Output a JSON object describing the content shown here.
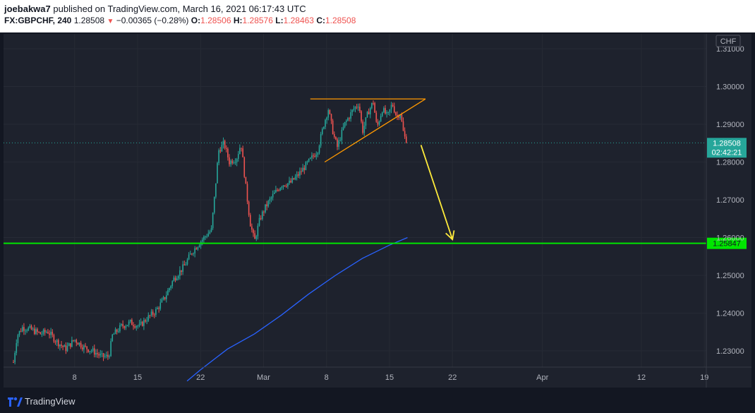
{
  "header": {
    "user": "joebakwa7",
    "published_text": "published on TradingView.com, March 16, 2021 06:17:43 UTC",
    "symbol": "FX:GBPCHF, 240",
    "last": "1.28508",
    "change": "−0.00365 (−0.28%)",
    "open_label": "O:",
    "open": "1.28506",
    "high_label": "H:",
    "high": "1.28576",
    "low_label": "L:",
    "low": "1.28463",
    "close_label": "C:",
    "close": "1.28508"
  },
  "footer": {
    "brand": "TradingView"
  },
  "colors": {
    "up": "#26a69a",
    "down": "#ef5350",
    "support": "#00e600",
    "ma": "#2962ff",
    "triangle": "#ff9800",
    "arrow": "#ffeb3b"
  },
  "chart_data": {
    "type": "candlestick",
    "currency_label": "CHF",
    "y_ticks": [
      "1.31000",
      "1.30000",
      "1.29000",
      "1.28000",
      "1.27000",
      "1.26000",
      "1.25000",
      "1.24000",
      "1.23000"
    ],
    "ylim": [
      1.225,
      1.3125
    ],
    "x_ticks": [
      {
        "label": "8",
        "day": 8
      },
      {
        "label": "15",
        "day": 15
      },
      {
        "label": "22",
        "day": 22
      },
      {
        "label": "Mar",
        "day": 29
      },
      {
        "label": "8",
        "day": 36
      },
      {
        "label": "15",
        "day": 43
      },
      {
        "label": "22",
        "day": 50
      },
      {
        "label": "Apr",
        "day": 60
      },
      {
        "label": "12",
        "day": 71
      },
      {
        "label": "19",
        "day": 78
      }
    ],
    "last_price": {
      "value": 1.28508,
      "label": "1.28508",
      "countdown": "02:42:21"
    },
    "support_level": {
      "value": 1.25847,
      "label": "1.25847"
    },
    "price_path": [
      [
        1.2,
        1.227
      ],
      [
        1.6,
        1.234
      ],
      [
        2.2,
        1.2362
      ],
      [
        3.0,
        1.2358
      ],
      [
        4.2,
        1.2345
      ],
      [
        5.0,
        1.2352
      ],
      [
        6.0,
        1.2325
      ],
      [
        7.0,
        1.2305
      ],
      [
        8.0,
        1.233
      ],
      [
        9.0,
        1.231
      ],
      [
        10.0,
        1.23
      ],
      [
        11.0,
        1.2285
      ],
      [
        11.8,
        1.2285
      ],
      [
        12.2,
        1.234
      ],
      [
        13.2,
        1.2365
      ],
      [
        14.2,
        1.2375
      ],
      [
        15.2,
        1.2365
      ],
      [
        16.0,
        1.2385
      ],
      [
        17.0,
        1.2405
      ],
      [
        18.0,
        1.244
      ],
      [
        19.0,
        1.249
      ],
      [
        20.2,
        1.2525
      ],
      [
        21.0,
        1.256
      ],
      [
        22.0,
        1.259
      ],
      [
        23.2,
        1.262
      ],
      [
        23.6,
        1.272
      ],
      [
        24.0,
        1.283
      ],
      [
        24.6,
        1.285
      ],
      [
        25.2,
        1.28
      ],
      [
        26.0,
        1.281
      ],
      [
        26.5,
        1.285
      ],
      [
        27.0,
        1.274
      ],
      [
        27.5,
        1.264
      ],
      [
        28.0,
        1.259
      ],
      [
        28.6,
        1.265
      ],
      [
        29.2,
        1.268
      ],
      [
        30.0,
        1.271
      ],
      [
        31.0,
        1.274
      ],
      [
        32.0,
        1.2745
      ],
      [
        33.0,
        1.277
      ],
      [
        34.0,
        1.28
      ],
      [
        35.0,
        1.283
      ],
      [
        35.7,
        1.29
      ],
      [
        36.2,
        1.294
      ],
      [
        36.8,
        1.287
      ],
      [
        37.2,
        1.284
      ],
      [
        38.0,
        1.29
      ],
      [
        39.0,
        1.294
      ],
      [
        39.6,
        1.2955
      ],
      [
        40.0,
        1.288
      ],
      [
        40.6,
        1.293
      ],
      [
        41.2,
        1.296
      ],
      [
        41.6,
        1.289
      ],
      [
        42.2,
        1.294
      ],
      [
        42.8,
        1.292
      ],
      [
        43.3,
        1.2955
      ],
      [
        43.8,
        1.292
      ],
      [
        44.2,
        1.293
      ],
      [
        44.6,
        1.287
      ],
      [
        45.0,
        1.2851
      ]
    ],
    "moving_average": [
      [
        20.5,
        1.222
      ],
      [
        22.0,
        1.225
      ],
      [
        25.0,
        1.2305
      ],
      [
        28.0,
        1.2345
      ],
      [
        31.0,
        1.2395
      ],
      [
        34.0,
        1.245
      ],
      [
        37.0,
        1.25
      ],
      [
        40.0,
        1.2545
      ],
      [
        43.0,
        1.258
      ],
      [
        45.0,
        1.26
      ]
    ],
    "triangle": {
      "top": [
        [
          34.2,
          1.2967
        ],
        [
          47.0,
          1.2967
        ]
      ],
      "bottom": [
        [
          35.8,
          1.28
        ],
        [
          47.0,
          1.2967
        ]
      ]
    },
    "projection_arrow": [
      [
        46.5,
        1.2845
      ],
      [
        50.0,
        1.2595
      ]
    ]
  }
}
